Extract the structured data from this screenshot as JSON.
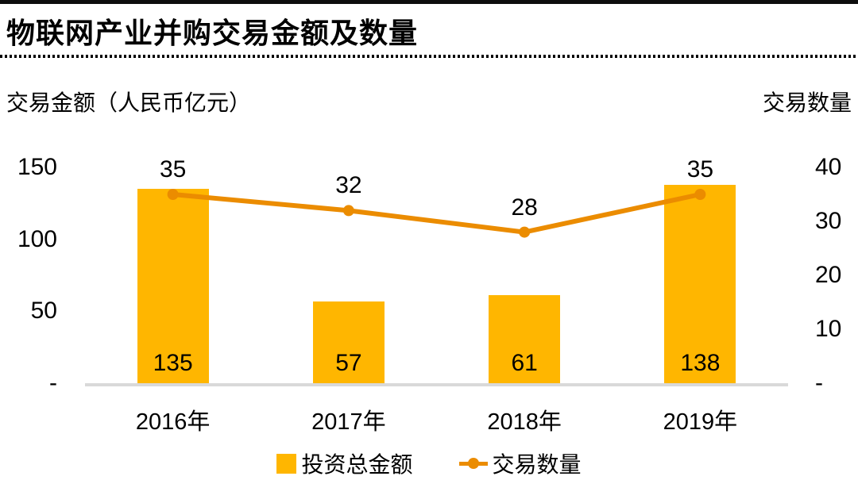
{
  "chart_data": {
    "type": "combo",
    "title": "物联网产业并购交易金额及数量",
    "categories": [
      "2016年",
      "2017年",
      "2018年",
      "2019年"
    ],
    "series": [
      {
        "name": "投资总金额",
        "type": "bar",
        "axis": "left",
        "color": "#FFB600",
        "values": [
          135,
          57,
          61,
          138
        ]
      },
      {
        "name": "交易数量",
        "type": "line",
        "axis": "right",
        "color": "#EB8C00",
        "values": [
          35,
          32,
          28,
          35
        ]
      }
    ],
    "left_axis": {
      "label": "交易金额（人民币亿元）",
      "ticks": [
        "150",
        "100",
        "50",
        "-"
      ],
      "tick_values": [
        150,
        100,
        50,
        0
      ],
      "range": [
        0,
        150
      ]
    },
    "right_axis": {
      "label": "交易数量",
      "ticks": [
        "40",
        "30",
        "20",
        "10",
        "-"
      ],
      "tick_values": [
        40,
        30,
        20,
        10,
        0
      ],
      "range": [
        0,
        40
      ]
    },
    "grid": false,
    "legend_position": "bottom",
    "baseline_color": "#D9D9D9",
    "background_color": "#FFFFFF",
    "title_rule_color": "#0D0D0D"
  }
}
